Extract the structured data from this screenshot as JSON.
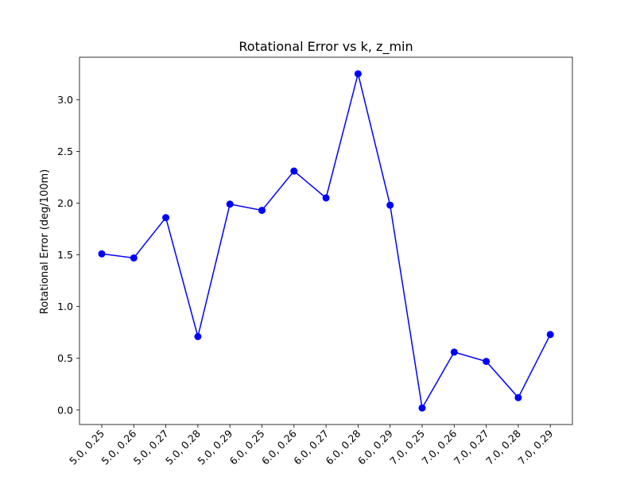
{
  "chart_data": {
    "type": "line",
    "title": "Rotational Error vs k, z_min",
    "xlabel": "",
    "ylabel": "Rotational Error (deg/100m)",
    "categories": [
      "5.0, 0.25",
      "5.0, 0.26",
      "5.0, 0.27",
      "5.0, 0.28",
      "5.0, 0.29",
      "6.0, 0.25",
      "6.0, 0.26",
      "6.0, 0.27",
      "6.0, 0.28",
      "6.0, 0.29",
      "7.0, 0.25",
      "7.0, 0.26",
      "7.0, 0.27",
      "7.0, 0.28",
      "7.0, 0.29"
    ],
    "series": [
      {
        "values": [
          1.51,
          1.47,
          1.86,
          0.71,
          1.99,
          1.93,
          2.31,
          2.05,
          3.25,
          1.98,
          0.02,
          0.56,
          0.47,
          0.12,
          0.73
        ],
        "color": "#0000ff",
        "marker": "circle"
      }
    ],
    "yticks": [
      0.0,
      0.5,
      1.0,
      1.5,
      2.0,
      2.5,
      3.0
    ],
    "ytick_labels": [
      "0.0",
      "0.5",
      "1.0",
      "1.5",
      "2.0",
      "2.5",
      "3.0"
    ],
    "ylim": [
      -0.14,
      3.41
    ],
    "grid": false,
    "xtick_rotation": 45
  }
}
